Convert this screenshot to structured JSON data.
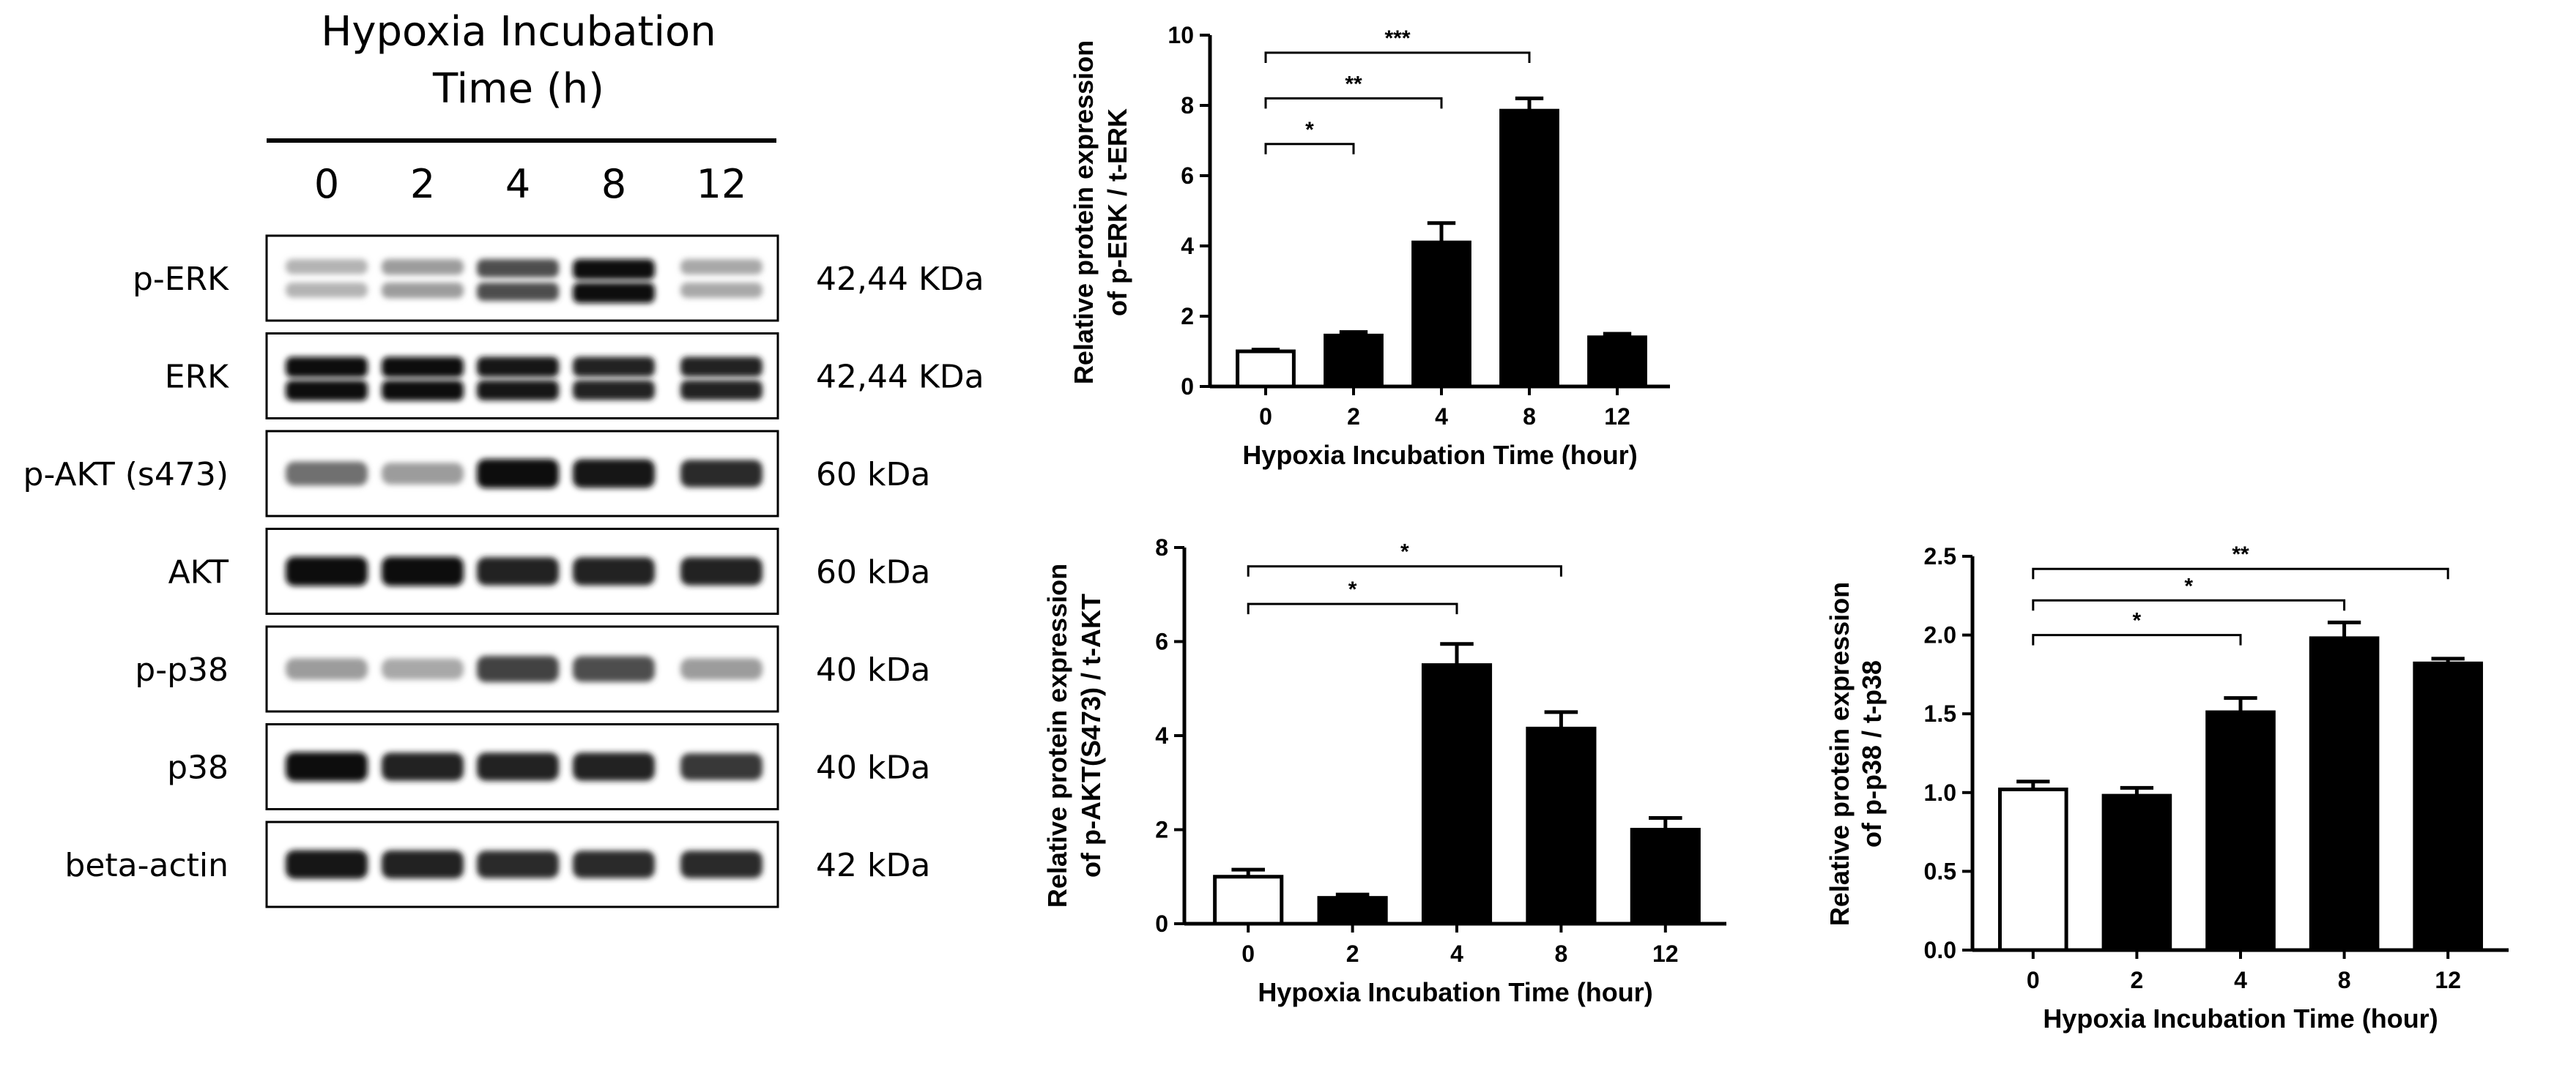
{
  "blot": {
    "title_line1": "Hypoxia Incubation",
    "title_line2": "Time (h)",
    "lanes": [
      "0",
      "2",
      "4",
      "8",
      "12"
    ],
    "rows": [
      {
        "label": "p-ERK",
        "size": "42,44 KDa",
        "intensity": [
          0.25,
          0.35,
          0.7,
          1.0,
          0.3
        ],
        "double": true
      },
      {
        "label": "ERK",
        "size": "42,44 KDa",
        "intensity": [
          1.0,
          1.0,
          0.95,
          0.9,
          0.9
        ],
        "double": true
      },
      {
        "label": "p-AKT (s473)",
        "size": "60 kDa",
        "intensity": [
          0.55,
          0.35,
          1.0,
          0.95,
          0.85
        ],
        "double": false
      },
      {
        "label": "AKT",
        "size": "60 kDa",
        "intensity": [
          1.0,
          1.0,
          0.9,
          0.9,
          0.9
        ],
        "double": false
      },
      {
        "label": "p-p38",
        "size": "40 kDa",
        "intensity": [
          0.35,
          0.3,
          0.75,
          0.7,
          0.35
        ],
        "double": false
      },
      {
        "label": "p38",
        "size": "40 kDa",
        "intensity": [
          1.0,
          0.9,
          0.9,
          0.9,
          0.8
        ],
        "double": false
      },
      {
        "label": "beta-actin",
        "size": "42 kDa",
        "intensity": [
          0.95,
          0.9,
          0.85,
          0.85,
          0.85
        ],
        "double": false
      }
    ]
  },
  "chart_data": [
    {
      "type": "bar",
      "title": "",
      "categories": [
        "0",
        "2",
        "4",
        "8",
        "12"
      ],
      "values": [
        1.0,
        1.45,
        4.1,
        7.85,
        1.4
      ],
      "errors": [
        0.05,
        0.1,
        0.55,
        0.35,
        0.1
      ],
      "fills": [
        "#ffffff",
        "#000000",
        "#000000",
        "#000000",
        "#000000"
      ],
      "ylim": [
        0,
        10
      ],
      "yticks": [
        "0",
        "2",
        "4",
        "6",
        "8",
        "10"
      ],
      "ylabel_line1": "Relative protein expression",
      "ylabel_line2": "of p-ERK / t-ERK",
      "xlabel": "Hypoxia Incubation Time (hour)",
      "significance": [
        {
          "from": 0,
          "to": 1,
          "level": 6.9,
          "label": "*"
        },
        {
          "from": 0,
          "to": 2,
          "level": 8.2,
          "label": "**"
        },
        {
          "from": 0,
          "to": 3,
          "level": 9.5,
          "label": "***"
        }
      ]
    },
    {
      "type": "bar",
      "title": "",
      "categories": [
        "0",
        "2",
        "4",
        "8",
        "12"
      ],
      "values": [
        1.0,
        0.55,
        5.5,
        4.15,
        2.0
      ],
      "errors": [
        0.15,
        0.07,
        0.45,
        0.35,
        0.25
      ],
      "fills": [
        "#ffffff",
        "#000000",
        "#000000",
        "#000000",
        "#000000"
      ],
      "ylim": [
        0,
        8
      ],
      "yticks": [
        "0",
        "2",
        "4",
        "6",
        "8"
      ],
      "ylabel_line1": "Relative protein expression",
      "ylabel_line2": "of p-AKT(S473) / t-AKT",
      "xlabel": "Hypoxia Incubation Time (hour)",
      "significance": [
        {
          "from": 0,
          "to": 2,
          "level": 6.8,
          "label": "*"
        },
        {
          "from": 0,
          "to": 3,
          "level": 7.6,
          "label": "*"
        }
      ]
    },
    {
      "type": "bar",
      "title": "",
      "categories": [
        "0",
        "2",
        "4",
        "8",
        "12"
      ],
      "values": [
        1.02,
        0.98,
        1.51,
        1.98,
        1.82
      ],
      "errors": [
        0.05,
        0.05,
        0.09,
        0.1,
        0.03
      ],
      "fills": [
        "#ffffff",
        "#000000",
        "#000000",
        "#000000",
        "#000000"
      ],
      "ylim": [
        0,
        2.5
      ],
      "yticks": [
        "0.0",
        "0.5",
        "1.0",
        "1.5",
        "2.0",
        "2.5"
      ],
      "ylabel_line1": "Relative protein expression",
      "ylabel_line2": "of p-p38 / t-p38",
      "xlabel": "Hypoxia Incubation Time (hour)",
      "significance": [
        {
          "from": 0,
          "to": 2,
          "level": 2.0,
          "label": "*"
        },
        {
          "from": 0,
          "to": 3,
          "level": 2.22,
          "label": "*"
        },
        {
          "from": 0,
          "to": 4,
          "level": 2.42,
          "label": "**"
        }
      ]
    }
  ]
}
